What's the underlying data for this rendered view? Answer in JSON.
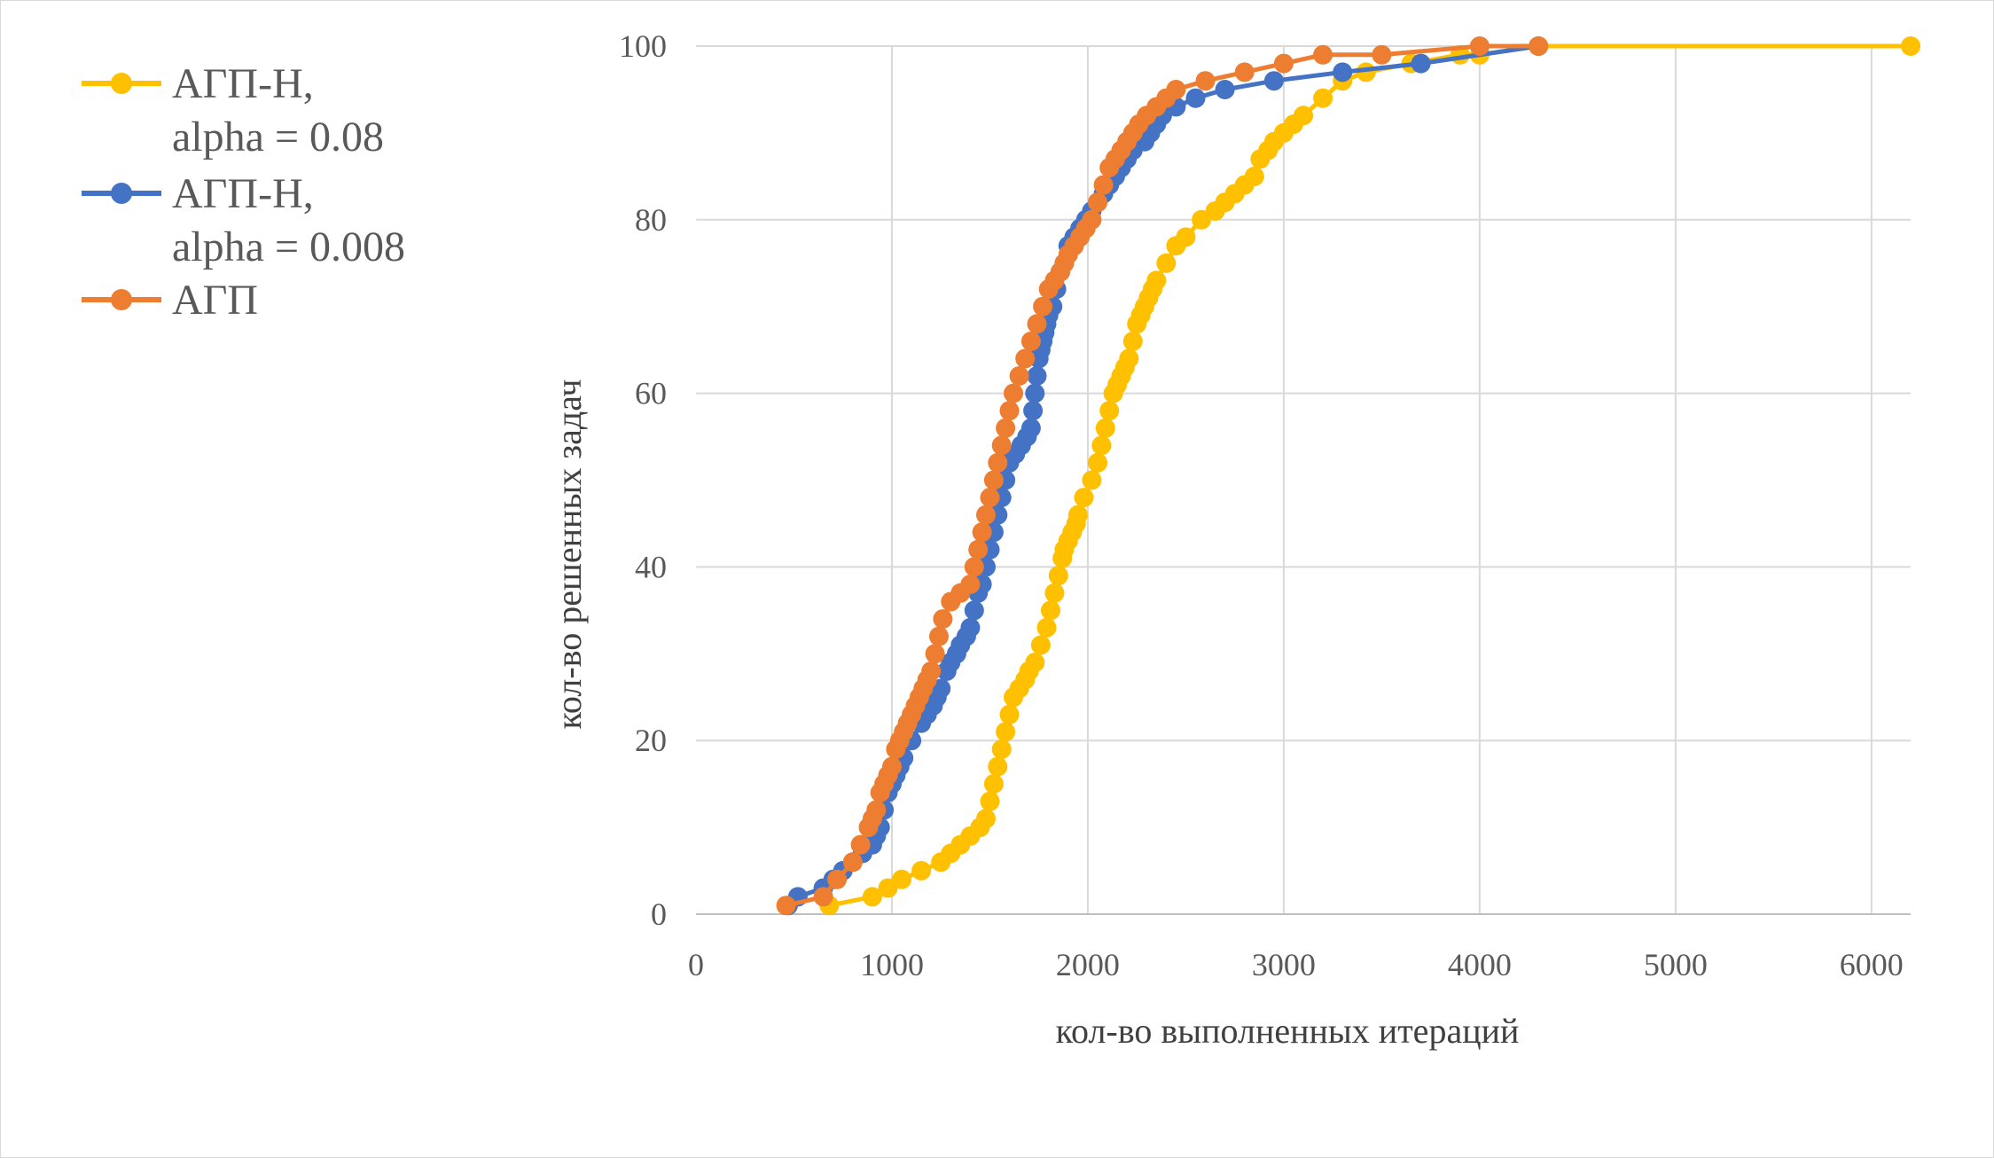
{
  "chart_data": {
    "type": "line",
    "title": "",
    "xlabel": "кол-во выполненных итераций",
    "ylabel": "кол-во решенных задач",
    "xlim": [
      0,
      6200
    ],
    "ylim": [
      0,
      100
    ],
    "x_ticks": [
      "0",
      "1000",
      "2000",
      "3000",
      "4000",
      "5000",
      "6000"
    ],
    "y_ticks": [
      "0",
      "20",
      "40",
      "60",
      "80",
      "100"
    ],
    "grid": true,
    "legend_position": "top-left",
    "series": [
      {
        "name_lines": [
          "АГП-Н,",
          "alpha = 0.08"
        ],
        "color": "#FFC000",
        "x": [
          680,
          900,
          980,
          1050,
          1150,
          1250,
          1300,
          1350,
          1400,
          1450,
          1480,
          1500,
          1520,
          1540,
          1560,
          1580,
          1600,
          1620,
          1650,
          1680,
          1700,
          1730,
          1760,
          1790,
          1810,
          1830,
          1850,
          1870,
          1880,
          1900,
          1920,
          1940,
          1950,
          1980,
          2020,
          2050,
          2070,
          2090,
          2110,
          2130,
          2150,
          2170,
          2190,
          2210,
          2230,
          2250,
          2270,
          2290,
          2310,
          2330,
          2350,
          2400,
          2450,
          2500,
          2580,
          2650,
          2700,
          2750,
          2800,
          2850,
          2880,
          2920,
          2950,
          3000,
          3050,
          3100,
          3200,
          3300,
          3420,
          3650,
          3900,
          4000,
          4300,
          6200
        ],
        "y": [
          1,
          2,
          3,
          4,
          5,
          6,
          7,
          8,
          9,
          10,
          11,
          13,
          15,
          17,
          19,
          21,
          23,
          25,
          26,
          27,
          28,
          29,
          31,
          33,
          35,
          37,
          39,
          41,
          42,
          43,
          44,
          45,
          46,
          48,
          50,
          52,
          54,
          56,
          58,
          60,
          61,
          62,
          63,
          64,
          66,
          68,
          69,
          70,
          71,
          72,
          73,
          75,
          77,
          78,
          80,
          81,
          82,
          83,
          84,
          85,
          87,
          88,
          89,
          90,
          91,
          92,
          94,
          96,
          97,
          98,
          99,
          99,
          100,
          100
        ]
      },
      {
        "name_lines": [
          "АГП-Н,",
          "alpha = 0.008"
        ],
        "color": "#4472C4",
        "x": [
          470,
          520,
          650,
          700,
          750,
          800,
          850,
          900,
          920,
          940,
          960,
          980,
          1000,
          1020,
          1040,
          1060,
          1100,
          1150,
          1180,
          1210,
          1230,
          1250,
          1280,
          1300,
          1330,
          1350,
          1380,
          1400,
          1420,
          1440,
          1460,
          1480,
          1500,
          1520,
          1540,
          1560,
          1580,
          1600,
          1630,
          1660,
          1690,
          1710,
          1720,
          1730,
          1740,
          1750,
          1760,
          1770,
          1780,
          1790,
          1800,
          1820,
          1840,
          1860,
          1880,
          1900,
          1930,
          1960,
          1990,
          2020,
          2050,
          2080,
          2110,
          2140,
          2170,
          2200,
          2230,
          2260,
          2290,
          2320,
          2350,
          2380,
          2400,
          2450,
          2550,
          2700,
          2950,
          3300,
          3700,
          4300
        ],
        "y": [
          1,
          2,
          3,
          4,
          5,
          6,
          7,
          8,
          9,
          10,
          12,
          14,
          15,
          16,
          17,
          18,
          20,
          22,
          23,
          24,
          25,
          26,
          28,
          29,
          30,
          31,
          32,
          33,
          35,
          37,
          38,
          40,
          42,
          44,
          46,
          48,
          50,
          52,
          53,
          54,
          55,
          56,
          58,
          60,
          62,
          64,
          65,
          66,
          67,
          68,
          69,
          70,
          72,
          74,
          75,
          77,
          78,
          79,
          80,
          81,
          82,
          83,
          84,
          85,
          86,
          87,
          88,
          89,
          89,
          90,
          91,
          92,
          93,
          93,
          94,
          95,
          96,
          97,
          98,
          100
        ]
      },
      {
        "name_lines": [
          "АГП"
        ],
        "color": "#ED7D31",
        "x": [
          460,
          650,
          720,
          800,
          840,
          880,
          900,
          920,
          940,
          960,
          980,
          1000,
          1020,
          1040,
          1060,
          1080,
          1100,
          1120,
          1140,
          1160,
          1180,
          1200,
          1220,
          1240,
          1260,
          1300,
          1350,
          1400,
          1420,
          1440,
          1460,
          1480,
          1500,
          1520,
          1540,
          1560,
          1580,
          1600,
          1620,
          1650,
          1680,
          1710,
          1740,
          1770,
          1800,
          1830,
          1860,
          1880,
          1900,
          1930,
          1960,
          1990,
          2020,
          2050,
          2080,
          2110,
          2140,
          2170,
          2200,
          2230,
          2260,
          2300,
          2350,
          2400,
          2450,
          2600,
          2800,
          3000,
          3200,
          3500,
          4000,
          4300
        ],
        "y": [
          1,
          2,
          4,
          6,
          8,
          10,
          11,
          12,
          14,
          15,
          16,
          17,
          19,
          20,
          21,
          22,
          23,
          24,
          25,
          26,
          27,
          28,
          30,
          32,
          34,
          36,
          37,
          38,
          40,
          42,
          44,
          46,
          48,
          50,
          52,
          54,
          56,
          58,
          60,
          62,
          64,
          66,
          68,
          70,
          72,
          73,
          74,
          75,
          76,
          77,
          78,
          79,
          80,
          82,
          84,
          86,
          87,
          88,
          89,
          90,
          91,
          92,
          93,
          94,
          95,
          96,
          97,
          98,
          99,
          99,
          100,
          100
        ]
      }
    ]
  }
}
